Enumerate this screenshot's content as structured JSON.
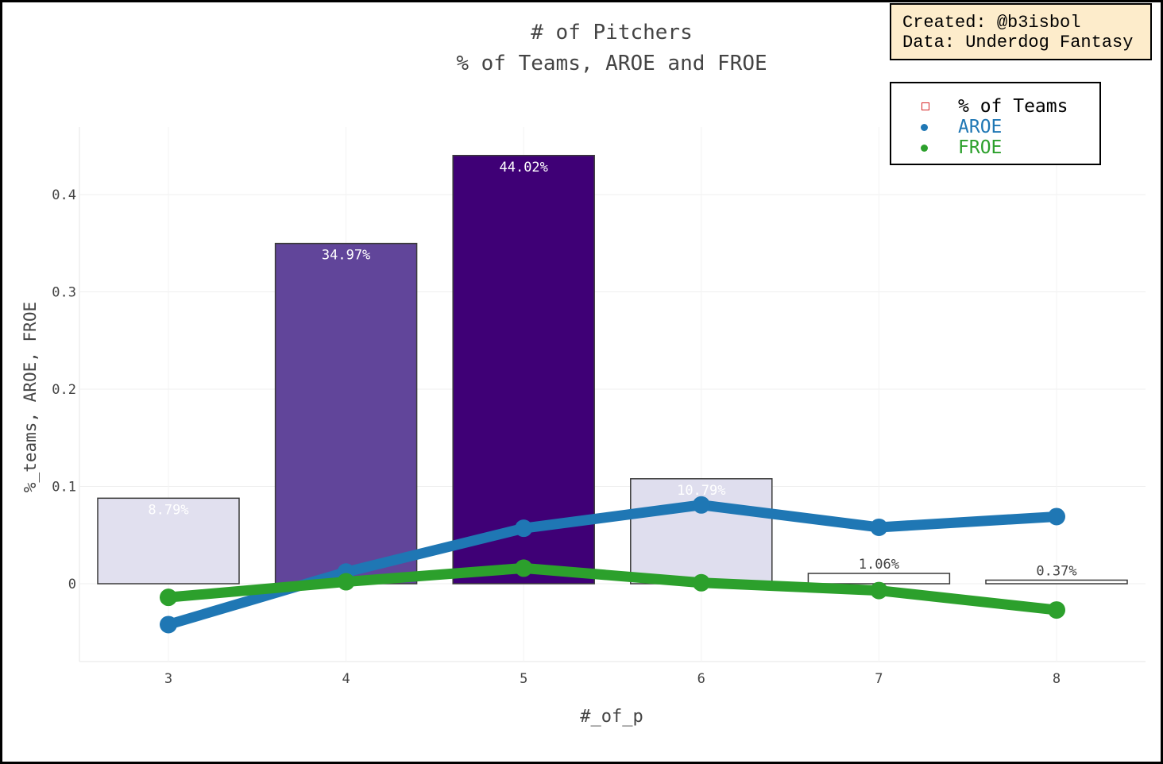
{
  "credit": {
    "line1": "Created: @b3isbol",
    "line2": "Data: Underdog Fantasy"
  },
  "colors": {
    "aroe": "#1f77b4",
    "froe": "#2ca02c",
    "legend_box": "#d62728"
  },
  "chart_data": {
    "type": "bar",
    "title": "# of Pitchers",
    "subtitle": "% of Teams, AROE and FROE",
    "xlabel": "#_of_p",
    "ylabel": "%_teams, AROE, FROE",
    "categories": [
      "3",
      "4",
      "5",
      "6",
      "7",
      "8"
    ],
    "ylim": [
      -0.08,
      0.48
    ],
    "yticks": [
      0,
      0.1,
      0.2,
      0.3,
      0.4
    ],
    "ytick_labels": [
      "0",
      "0.1",
      "0.2",
      "0.3",
      "0.4"
    ],
    "grid": true,
    "legend_placement": "top-right",
    "series": [
      {
        "name": "% of Teams",
        "kind": "bar",
        "values": [
          0.0879,
          0.3497,
          0.4402,
          0.1079,
          0.0106,
          0.0037
        ],
        "labels": [
          "8.79%",
          "34.97%",
          "44.02%",
          "10.79%",
          "1.06%",
          "0.37%"
        ],
        "colors": [
          "#e1e0ef",
          "#61459a",
          "#3f0076",
          "#dfdeee",
          "#ffffff",
          "#ffffff"
        ],
        "label_colors": [
          "#ffffff",
          "#ffffff",
          "#ffffff",
          "#ffffff",
          "#444444",
          "#444444"
        ]
      },
      {
        "name": "AROE",
        "kind": "line",
        "color": "#1f77b4",
        "values": [
          -0.042,
          0.012,
          0.057,
          0.081,
          0.058,
          0.069
        ]
      },
      {
        "name": "FROE",
        "kind": "line",
        "color": "#2ca02c",
        "values": [
          -0.014,
          0.002,
          0.016,
          0.001,
          -0.007,
          -0.027
        ]
      }
    ]
  }
}
